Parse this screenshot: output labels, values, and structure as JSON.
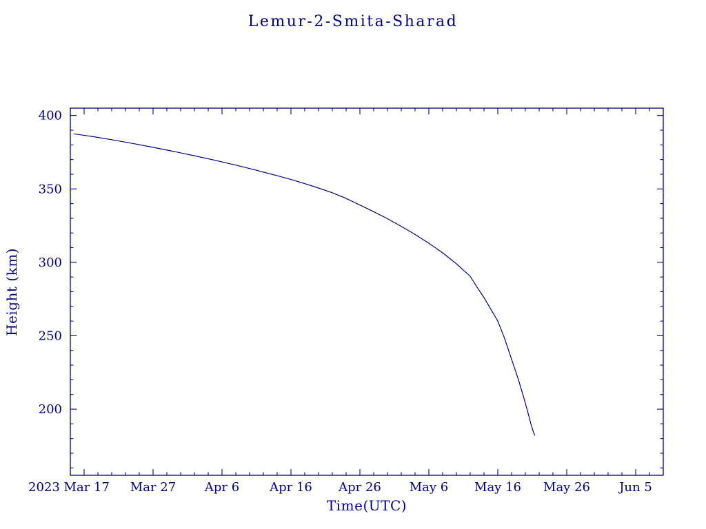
{
  "page": {
    "background": "#ffffff",
    "accent_color": "#00008B"
  },
  "chart_data": {
    "type": "line",
    "title": "Lemur-2-Smita-Sharad",
    "xlabel": "Time(UTC)",
    "ylabel": "Height (km)",
    "color": "#00008B",
    "grid": false,
    "legend": "none",
    "ylim": [
      155,
      405
    ],
    "y_ticks": [
      200,
      250,
      300,
      350,
      400
    ],
    "y_minor_step": 10,
    "x_axis_note": "days since 2023 Mar 15 (derived from tick labels)",
    "xlim_days": [
      0,
      86
    ],
    "x_minor_step_days": 2,
    "x_ticks": [
      {
        "day": 2,
        "label": "2023 Mar 17",
        "dx": -22
      },
      {
        "day": 12,
        "label": "Mar 27",
        "dx": 0
      },
      {
        "day": 22,
        "label": "Apr 6",
        "dx": 0
      },
      {
        "day": 32,
        "label": "Apr 16",
        "dx": 0
      },
      {
        "day": 42,
        "label": "Apr 26",
        "dx": 0
      },
      {
        "day": 52,
        "label": "May 6",
        "dx": 0
      },
      {
        "day": 62,
        "label": "May 16",
        "dx": 0
      },
      {
        "day": 72,
        "label": "May 26",
        "dx": 0
      },
      {
        "day": 82,
        "label": "Jun 5",
        "dx": 0
      }
    ],
    "series": [
      {
        "name": "Height (km)",
        "color": "#00008B",
        "points_day_height": [
          [
            0.5,
            387.5
          ],
          [
            3,
            385.8
          ],
          [
            6,
            383.5
          ],
          [
            9,
            381
          ],
          [
            12,
            378.3
          ],
          [
            15,
            375.5
          ],
          [
            18,
            372.6
          ],
          [
            21,
            369.5
          ],
          [
            24,
            366.2
          ],
          [
            27,
            362.7
          ],
          [
            30,
            359
          ],
          [
            32,
            356.4
          ],
          [
            34,
            353.6
          ],
          [
            36,
            350.6
          ],
          [
            38,
            347.4
          ],
          [
            40,
            343.5
          ],
          [
            42,
            339
          ],
          [
            44,
            334.5
          ],
          [
            46,
            329.7
          ],
          [
            48,
            324.5
          ],
          [
            50,
            319
          ],
          [
            52,
            313
          ],
          [
            54,
            306.5
          ],
          [
            56,
            299
          ],
          [
            58,
            290.5
          ],
          [
            59,
            283
          ],
          [
            60,
            276
          ],
          [
            61,
            268
          ],
          [
            62,
            260
          ],
          [
            63,
            248
          ],
          [
            64,
            234
          ],
          [
            65,
            220
          ],
          [
            65.7,
            209
          ],
          [
            66.3,
            199
          ],
          [
            66.8,
            190
          ],
          [
            67.2,
            184
          ],
          [
            67.4,
            182
          ]
        ]
      }
    ]
  }
}
